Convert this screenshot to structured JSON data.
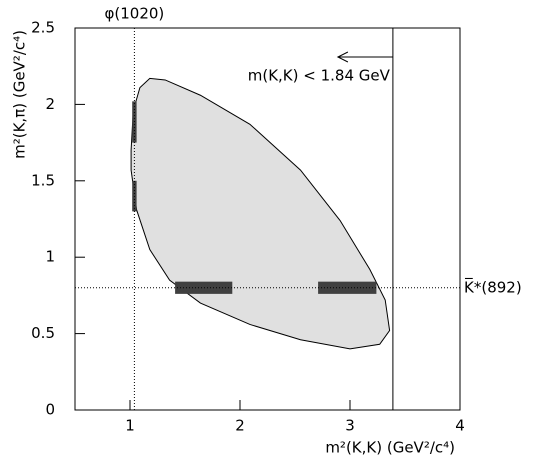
{
  "chart_data": {
    "type": "dalitz",
    "xlabel": "m²(K,K) (GeV²/c⁴)",
    "ylabel": "m²(K,π) (GeV²/c⁴)",
    "xlim": [
      0.5,
      4
    ],
    "ylim": [
      0,
      2.5
    ],
    "xticks": [
      1,
      2,
      3,
      4
    ],
    "yticks": [
      0,
      0.5,
      1,
      1.5,
      2,
      2.5
    ],
    "boundary": {
      "color": "#e0e0e0",
      "x": [
        1.01,
        1.03,
        1.09,
        1.18,
        1.32,
        1.64,
        2.09,
        2.55,
        2.91,
        3.18,
        3.32,
        3.36,
        3.27,
        3.0,
        2.55,
        2.09,
        1.64,
        1.36,
        1.18,
        1.06,
        1.01
      ],
      "y": [
        1.7,
        1.96,
        2.11,
        2.17,
        2.16,
        2.06,
        1.87,
        1.57,
        1.24,
        0.92,
        0.72,
        0.52,
        0.43,
        0.4,
        0.46,
        0.56,
        0.7,
        0.85,
        1.05,
        1.31,
        1.57
      ]
    },
    "bands": [
      {
        "x": [
          1.41,
          1.93
        ],
        "y": [
          0.76,
          0.84
        ]
      },
      {
        "x": [
          2.71,
          3.24
        ],
        "y": [
          0.76,
          0.84
        ]
      },
      {
        "x": [
          1.02,
          1.06
        ],
        "y": [
          1.3,
          1.5
        ]
      },
      {
        "x": [
          1.02,
          1.06
        ],
        "y": [
          1.75,
          2.02
        ]
      }
    ],
    "band_color": "#404040",
    "lines": [
      {
        "axis": "x",
        "value": 1.04,
        "label": "φ(1020)",
        "style": "dotted"
      },
      {
        "axis": "y",
        "value": 0.8,
        "label": "K̅*(892)",
        "style": "dotted"
      },
      {
        "axis": "x",
        "value": 3.39,
        "label": "m(K,K) < 1.84 GeV",
        "style": "solid"
      }
    ]
  }
}
